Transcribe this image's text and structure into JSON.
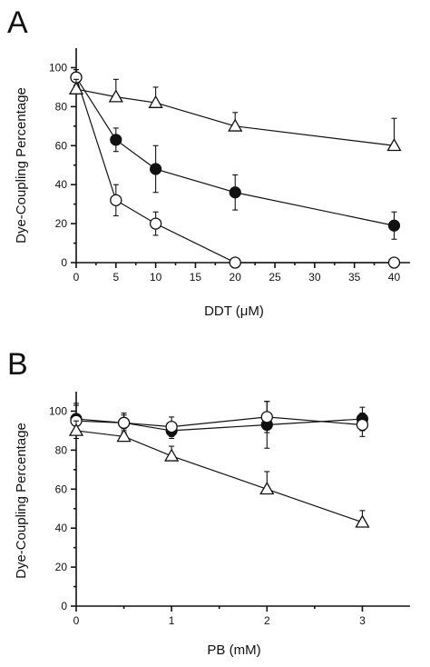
{
  "chart_data": [
    {
      "panel": "A",
      "type": "scatter",
      "xlabel": "DDT (μM)",
      "ylabel": "Dye-Coupling Percentage",
      "xlim": [
        0,
        42
      ],
      "ylim": [
        0,
        110
      ],
      "xticks": [
        0,
        5,
        10,
        15,
        20,
        25,
        30,
        35,
        40
      ],
      "yticks": [
        0,
        20,
        40,
        60,
        80,
        100
      ],
      "series": [
        {
          "marker": "filled-circle",
          "x": [
            0,
            5,
            10,
            20,
            40
          ],
          "values": [
            95,
            63,
            48,
            36,
            19
          ],
          "error": [
            4,
            6,
            12,
            9,
            7
          ]
        },
        {
          "marker": "open-circle",
          "x": [
            0,
            5,
            10,
            20,
            40
          ],
          "values": [
            95,
            32,
            20,
            0,
            0
          ],
          "error": [
            4,
            8,
            6,
            0,
            0
          ]
        },
        {
          "marker": "open-triangle",
          "x": [
            0,
            5,
            10,
            20,
            40
          ],
          "values": [
            89,
            85,
            82,
            70,
            60
          ],
          "error": [
            5,
            9,
            8,
            7,
            14
          ]
        }
      ]
    },
    {
      "panel": "B",
      "type": "scatter",
      "xlabel": "PB (mM)",
      "ylabel": "Dye-Coupling Percentage",
      "xlim": [
        0,
        3.5
      ],
      "ylim": [
        0,
        110
      ],
      "xticks": [
        0,
        1,
        2,
        3
      ],
      "yticks": [
        0,
        20,
        40,
        60,
        80,
        100
      ],
      "series": [
        {
          "marker": "filled-circle",
          "x": [
            0,
            0.5,
            1,
            2,
            3
          ],
          "values": [
            96,
            94,
            90,
            93,
            96
          ],
          "error": [
            7,
            4,
            4,
            12,
            6
          ]
        },
        {
          "marker": "open-circle",
          "x": [
            0,
            0.5,
            1,
            2,
            3
          ],
          "values": [
            95,
            94,
            92,
            97,
            93
          ],
          "error": [
            9,
            5,
            5,
            8,
            6
          ]
        },
        {
          "marker": "open-triangle",
          "x": [
            0,
            0.5,
            1,
            2,
            3
          ],
          "values": [
            90,
            87,
            77,
            60,
            43
          ],
          "error": [
            5,
            4,
            5,
            9,
            6
          ]
        }
      ]
    }
  ]
}
